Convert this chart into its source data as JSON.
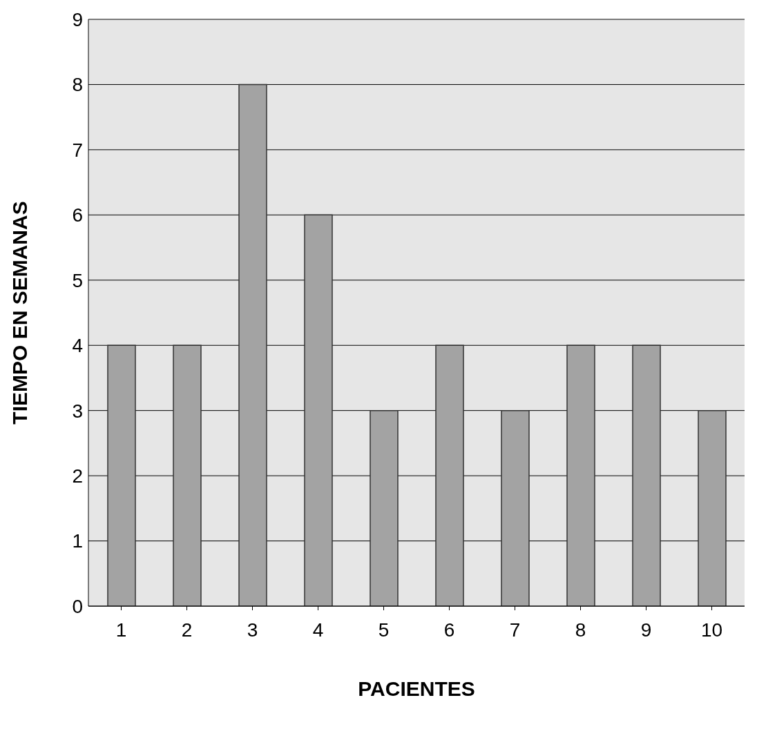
{
  "chart_data": {
    "type": "bar",
    "xlabel": "PACIENTES",
    "ylabel": "TIEMPO EN SEMANAS",
    "categories": [
      "1",
      "2",
      "3",
      "4",
      "5",
      "6",
      "7",
      "8",
      "9",
      "10"
    ],
    "values": [
      4,
      4,
      8,
      6,
      3,
      4,
      3,
      4,
      4,
      3
    ],
    "color": "#a3a3a3",
    "ylim": [
      0,
      9
    ],
    "yticks": [
      0,
      1,
      2,
      3,
      4,
      5,
      6,
      7,
      8,
      9
    ],
    "grid": "y"
  }
}
